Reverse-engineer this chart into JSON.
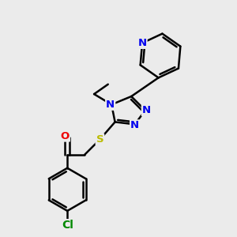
{
  "bg_color": "#ebebeb",
  "bond_color": "#000000",
  "bond_width": 1.8,
  "atom_colors": {
    "N": "#0000ee",
    "O": "#ee0000",
    "S": "#bbbb00",
    "Cl": "#008800",
    "C": "#000000"
  },
  "font_size_atom": 9.5,
  "figsize": [
    3.0,
    3.0
  ],
  "dpi": 100
}
